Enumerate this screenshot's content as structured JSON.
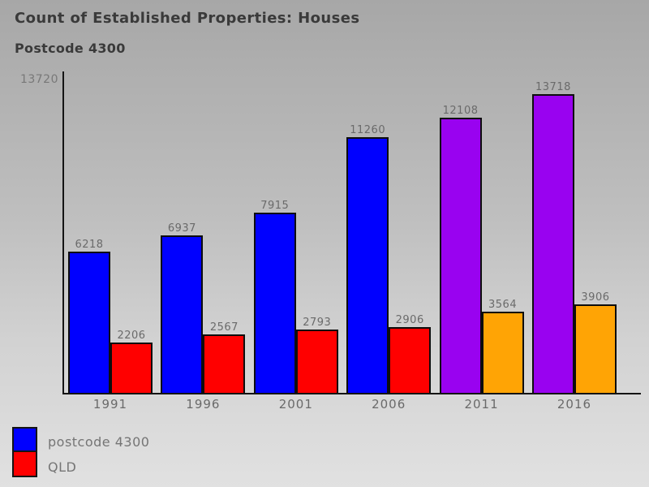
{
  "title": "Count of Established Properties: Houses",
  "subtitle": "Postcode 4300",
  "y_axis_max_label": "13720",
  "legend": [
    {
      "label": "postcode 4300",
      "color": "#0000ff"
    },
    {
      "label": "QLD",
      "color": "#ff0000"
    }
  ],
  "chart_data": {
    "type": "bar",
    "title": "Count of Established Properties: Houses",
    "subtitle": "Postcode 4300",
    "categories": [
      "1991",
      "1996",
      "2001",
      "2006",
      "2011",
      "2016"
    ],
    "series": [
      {
        "name": "postcode 4300",
        "values": [
          6218,
          6937,
          7915,
          11260,
          12108,
          13718
        ],
        "bar_colors": [
          "#0000ff",
          "#0000ff",
          "#0000ff",
          "#0000ff",
          "#9902f0",
          "#9902f0"
        ]
      },
      {
        "name": "QLD",
        "values": [
          2206,
          2567,
          2793,
          2906,
          3564,
          3906
        ],
        "bar_colors": [
          "#ff0000",
          "#ff0000",
          "#ff0000",
          "#ff0000",
          "#ffa405",
          "#ffa405"
        ]
      }
    ],
    "xlabel": "",
    "ylabel": "",
    "ylim": [
      0,
      13720
    ],
    "grid": false,
    "legend_position": "bottom-left",
    "value_labels": true
  },
  "colors": {
    "background_top": "#a7a7a7",
    "background_bottom": "#e1e1e1",
    "axis": "#141414",
    "title_text": "#3a3a3a",
    "label_text": "#6a6a6a",
    "legend_text": "#757575"
  }
}
